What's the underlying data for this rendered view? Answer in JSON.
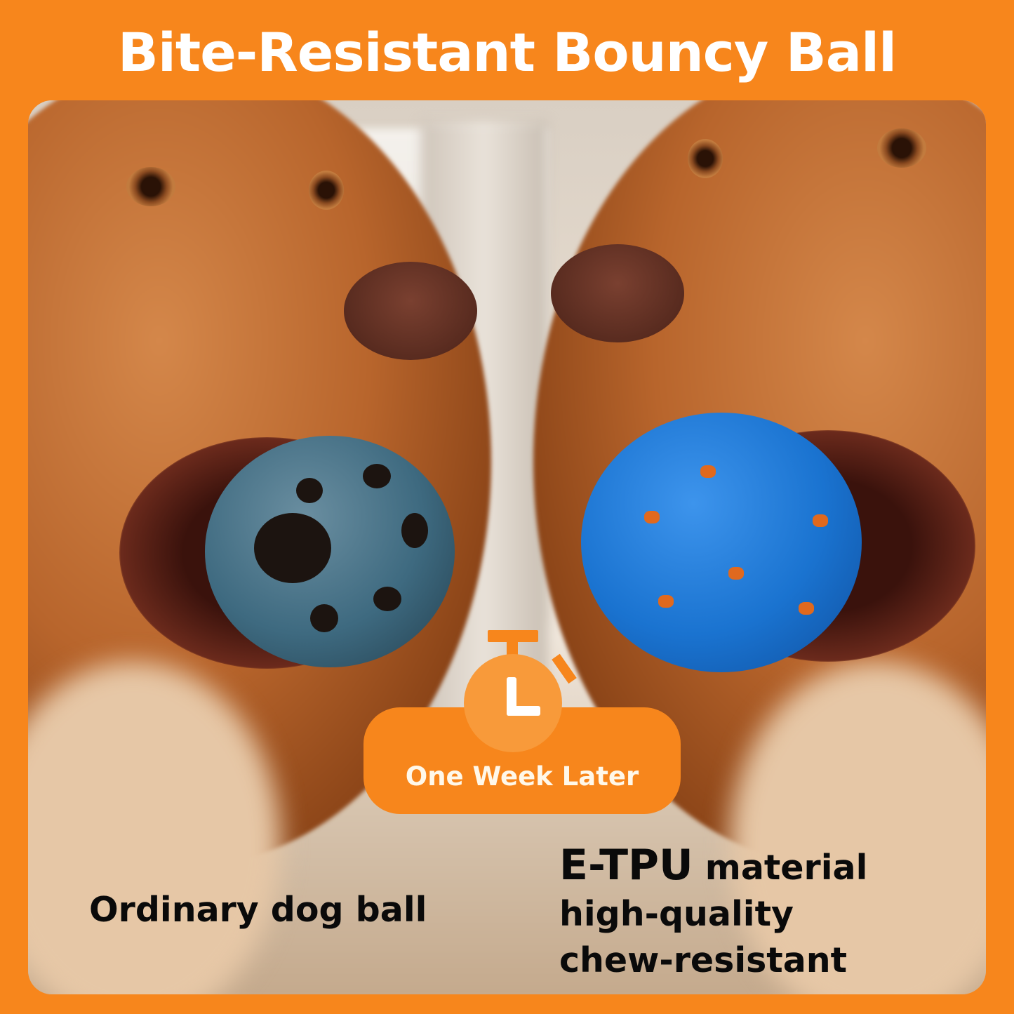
{
  "title": "Bite-Resistant Bouncy Ball",
  "badge": {
    "label": "One Week Later",
    "icon": "stopwatch-icon"
  },
  "left_caption": "Ordinary dog ball",
  "right_caption": {
    "line1_strong": "E-TPU",
    "line1_rest": " material",
    "line2": "high-quality",
    "line3": "chew-resistant"
  },
  "colors": {
    "brand_orange": "#F7861C",
    "badge_circle": "#F89A3A",
    "new_ball_blue": "#1A73D0",
    "old_ball_gray_blue": "#3E6A80"
  }
}
